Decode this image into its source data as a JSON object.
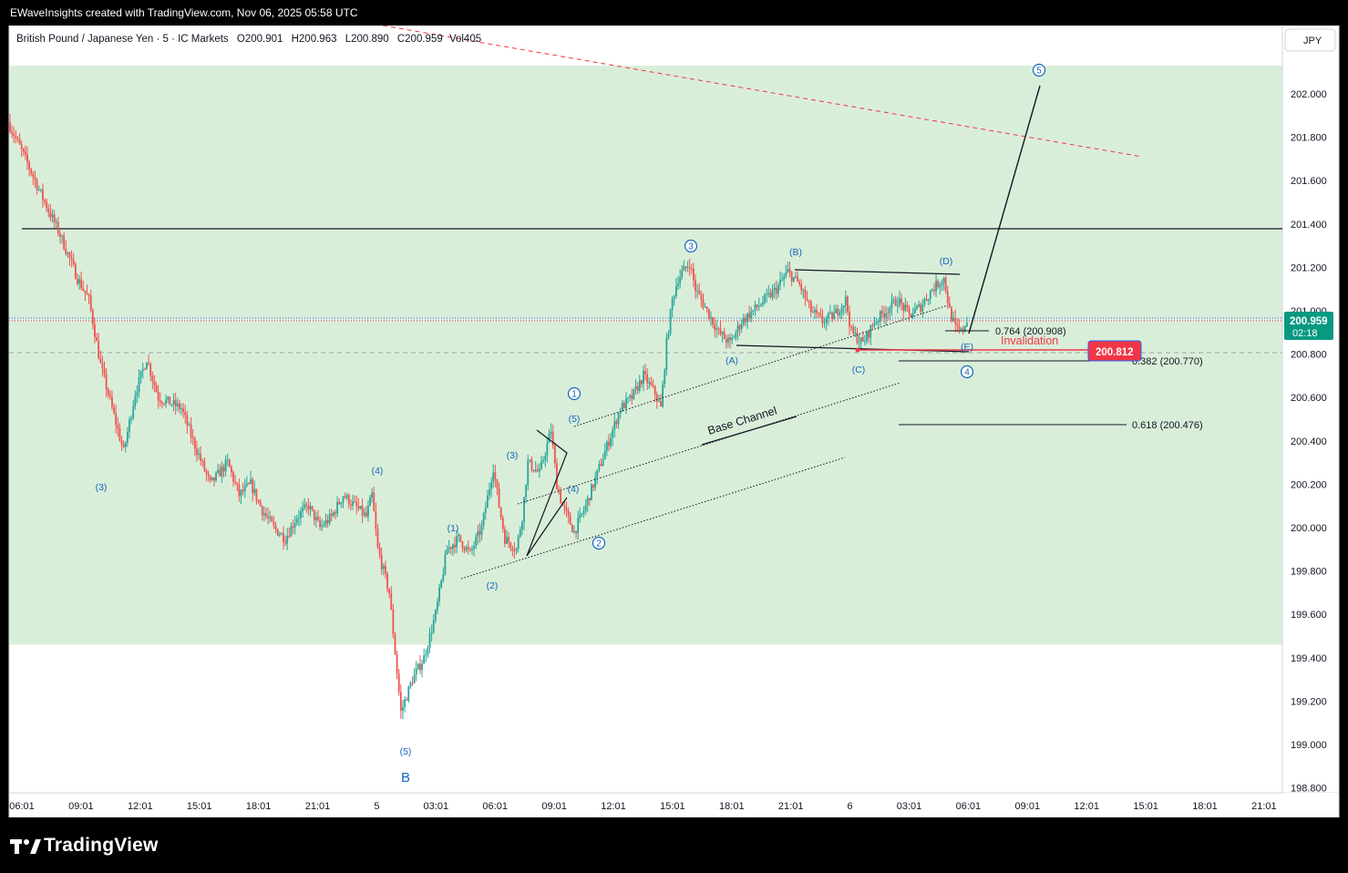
{
  "header": {
    "caption": "EWaveInsights created with TradingView.com, Nov 06, 2025 05:58 UTC"
  },
  "legend": {
    "symbol": "British Pound / Japanese Yen · 5 · IC Markets",
    "open": "O200.901",
    "high": "H200.963",
    "low": "L200.890",
    "close": "C200.959",
    "volume": "Vol405"
  },
  "currency_label": "JPY",
  "brand": {
    "name": "TradingView"
  },
  "colors": {
    "zone": "#d9eed9",
    "up": "#26a69a",
    "down": "#ef5350",
    "price_tag": "#089981",
    "invalidation": "#f23645",
    "wave_label": "#1565c0"
  },
  "last_price": {
    "value": "200.959",
    "countdown": "02:18"
  },
  "invalidation": {
    "label": "Invalidation",
    "price": "200.812"
  },
  "fib_levels": [
    {
      "label": "0.764 (200.908)"
    },
    {
      "label": "0.382 (200.770)"
    },
    {
      "label": "0.618 (200.476)"
    }
  ],
  "channel_label": "Base Channel",
  "wave_labels": [
    {
      "text": "(3)",
      "t": -1
    },
    {
      "text": "(4)",
      "t": -1
    },
    {
      "text": "(5)",
      "t": -1
    },
    {
      "text": "B",
      "t": -1
    },
    {
      "text": "(1)",
      "t": -1
    },
    {
      "text": "(2)",
      "t": -1
    },
    {
      "text": "(3)",
      "t": -1
    },
    {
      "text": "(4)",
      "t": -1
    },
    {
      "text": "(5)",
      "t": -1
    },
    {
      "text": "1",
      "t": 1
    },
    {
      "text": "2",
      "t": 1
    },
    {
      "text": "3",
      "t": 1
    },
    {
      "text": "(A)",
      "t": -1
    },
    {
      "text": "(B)",
      "t": -1
    },
    {
      "text": "(C)",
      "t": -1
    },
    {
      "text": "(D)",
      "t": -1
    },
    {
      "text": "(E)",
      "t": -1
    },
    {
      "text": "4",
      "t": 1
    },
    {
      "text": "5",
      "t": 1
    }
  ],
  "chart_data": {
    "type": "candlestick",
    "y_ticks": [
      "202.000",
      "201.800",
      "201.600",
      "201.400",
      "201.200",
      "201.000",
      "200.800",
      "200.600",
      "200.400",
      "200.200",
      "200.000",
      "199.800",
      "199.600",
      "199.400",
      "199.200",
      "199.000",
      "198.800"
    ],
    "x_ticks": [
      "06:01",
      "09:01",
      "12:01",
      "15:01",
      "18:01",
      "21:01",
      "5",
      "03:01",
      "06:01",
      "09:01",
      "12:01",
      "15:01",
      "18:01",
      "21:01",
      "6",
      "03:01",
      "06:01",
      "09:01",
      "12:01",
      "15:01",
      "18:01",
      "21:01"
    ],
    "zone": {
      "top": 202.13,
      "bottom": 199.46
    },
    "horizontal_level": 201.38,
    "price_path": [
      [
        0,
        201.87
      ],
      [
        3,
        201.7
      ],
      [
        6,
        201.52
      ],
      [
        9,
        201.35
      ],
      [
        12,
        201.15
      ],
      [
        14,
        201.05
      ],
      [
        16,
        200.75
      ],
      [
        18,
        200.55
      ],
      [
        20,
        200.35
      ],
      [
        22,
        200.62
      ],
      [
        24,
        200.78
      ],
      [
        26,
        200.6
      ],
      [
        30,
        200.55
      ],
      [
        32,
        200.4
      ],
      [
        35,
        200.2
      ],
      [
        38,
        200.3
      ],
      [
        40,
        200.15
      ],
      [
        42,
        200.2
      ],
      [
        44,
        200.08
      ],
      [
        46,
        200.0
      ],
      [
        48,
        199.95
      ],
      [
        50,
        200.05
      ],
      [
        52,
        200.1
      ],
      [
        54,
        200.0
      ],
      [
        56,
        200.05
      ],
      [
        58,
        200.15
      ],
      [
        60,
        200.1
      ],
      [
        62,
        200.05
      ],
      [
        63,
        200.15
      ],
      [
        64,
        199.9
      ],
      [
        66,
        199.7
      ],
      [
        68,
        199.15
      ],
      [
        70,
        199.3
      ],
      [
        72,
        199.4
      ],
      [
        74,
        199.6
      ],
      [
        76,
        199.9
      ],
      [
        78,
        199.95
      ],
      [
        80,
        199.88
      ],
      [
        82,
        200.0
      ],
      [
        84,
        200.28
      ],
      [
        85,
        200.1
      ],
      [
        86,
        199.95
      ],
      [
        88,
        199.9
      ],
      [
        89,
        200.05
      ],
      [
        90,
        200.3
      ],
      [
        92,
        200.25
      ],
      [
        93,
        200.35
      ],
      [
        94,
        200.45
      ],
      [
        95,
        200.2
      ],
      [
        96,
        200.1
      ],
      [
        98,
        199.98
      ],
      [
        100,
        200.1
      ],
      [
        102,
        200.25
      ],
      [
        104,
        200.4
      ],
      [
        106,
        200.55
      ],
      [
        108,
        200.6
      ],
      [
        110,
        200.7
      ],
      [
        112,
        200.62
      ],
      [
        113,
        200.55
      ],
      [
        114,
        200.85
      ],
      [
        115,
        201.05
      ],
      [
        116,
        201.15
      ],
      [
        118,
        201.22
      ],
      [
        119,
        201.1
      ],
      [
        121,
        201.0
      ],
      [
        123,
        200.9
      ],
      [
        125,
        200.85
      ],
      [
        127,
        200.95
      ],
      [
        129,
        201.0
      ],
      [
        131,
        201.05
      ],
      [
        133,
        201.1
      ],
      [
        135,
        201.18
      ],
      [
        137,
        201.12
      ],
      [
        139,
        201.0
      ],
      [
        141,
        200.95
      ],
      [
        143,
        200.98
      ],
      [
        145,
        201.05
      ],
      [
        146,
        200.9
      ],
      [
        148,
        200.85
      ],
      [
        150,
        200.95
      ],
      [
        152,
        201.0
      ],
      [
        154,
        201.05
      ],
      [
        156,
        200.98
      ],
      [
        158,
        201.02
      ],
      [
        160,
        201.1
      ],
      [
        162,
        201.15
      ],
      [
        163,
        201.0
      ],
      [
        164,
        200.92
      ],
      [
        165,
        200.9
      ],
      [
        166,
        200.96
      ]
    ],
    "annotations": [
      "wave count",
      "triangle (A)-(B)-(C)-(D)-(E)",
      "base channel",
      "projected wave 5 target"
    ]
  }
}
